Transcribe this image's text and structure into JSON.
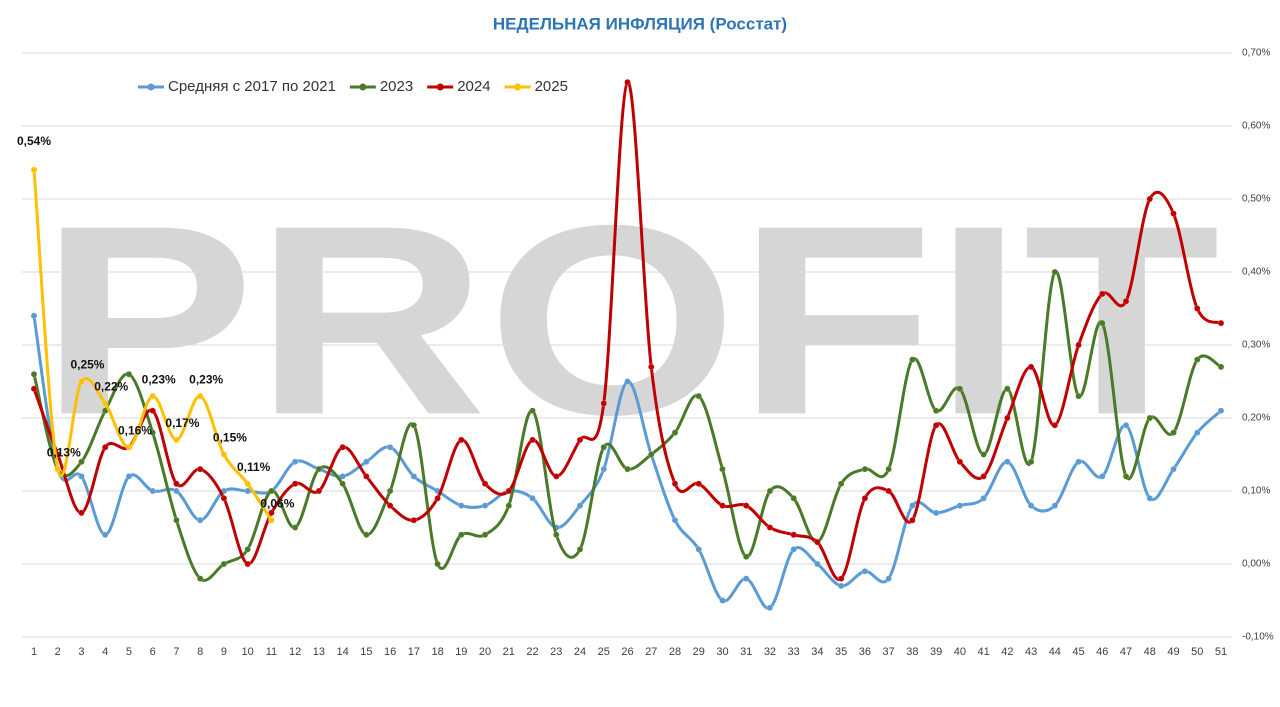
{
  "chart_data": {
    "type": "line",
    "title": "НЕДЕЛЬНАЯ ИНФЛЯЦИЯ (Росстат)",
    "watermark": "PROFIT",
    "categories": [
      1,
      2,
      3,
      4,
      5,
      6,
      7,
      8,
      9,
      10,
      11,
      12,
      13,
      14,
      15,
      16,
      17,
      18,
      19,
      20,
      21,
      22,
      23,
      24,
      25,
      26,
      27,
      28,
      29,
      30,
      31,
      32,
      33,
      34,
      35,
      36,
      37,
      38,
      39,
      40,
      41,
      42,
      43,
      44,
      45,
      46,
      47,
      48,
      49,
      50,
      51
    ],
    "ylim": [
      -0.1,
      0.7
    ],
    "yticks": [
      {
        "value": -0.1,
        "label": "-0,10%"
      },
      {
        "value": 0,
        "label": "0,00%"
      },
      {
        "value": 0.1,
        "label": "0,10%"
      },
      {
        "value": 0.2,
        "label": "0,20%"
      },
      {
        "value": 0.3,
        "label": "0,30%"
      },
      {
        "value": 0.4,
        "label": "0,40%"
      },
      {
        "value": 0.5,
        "label": "0,50%"
      },
      {
        "value": 0.6,
        "label": "0,60%"
      },
      {
        "value": 0.7,
        "label": "0,70%"
      }
    ],
    "grid": true,
    "smooth": true,
    "legend": "top-left",
    "series": [
      {
        "name": "Средняя с 2017 по 2021",
        "color": "#5b9bd5",
        "values": [
          0.34,
          0.13,
          0.12,
          0.04,
          0.12,
          0.1,
          0.1,
          0.06,
          0.1,
          0.1,
          0.1,
          0.14,
          0.13,
          0.12,
          0.14,
          0.16,
          0.12,
          0.1,
          0.08,
          0.08,
          0.1,
          0.09,
          0.05,
          0.08,
          0.13,
          0.25,
          0.15,
          0.06,
          0.02,
          -0.05,
          -0.02,
          -0.06,
          0.02,
          0.0,
          -0.03,
          -0.01,
          -0.02,
          0.08,
          0.07,
          0.08,
          0.09,
          0.14,
          0.08,
          0.08,
          0.14,
          0.12,
          0.19,
          0.09,
          0.13,
          0.18,
          0.21
        ]
      },
      {
        "name": "2023",
        "color": "#4a7a28",
        "values": [
          0.26,
          0.13,
          0.14,
          0.21,
          0.26,
          0.18,
          0.06,
          -0.02,
          0.0,
          0.02,
          0.1,
          0.05,
          0.13,
          0.11,
          0.04,
          0.1,
          0.19,
          0.0,
          0.04,
          0.04,
          0.08,
          0.21,
          0.04,
          0.02,
          0.16,
          0.13,
          0.15,
          0.18,
          0.23,
          0.13,
          0.01,
          0.1,
          0.09,
          0.03,
          0.11,
          0.13,
          0.13,
          0.28,
          0.21,
          0.24,
          0.15,
          0.24,
          0.14,
          0.4,
          0.23,
          0.33,
          0.12,
          0.2,
          0.18,
          0.28,
          0.27
        ]
      },
      {
        "name": "2024",
        "color": "#c00000",
        "values": [
          0.24,
          0.15,
          0.07,
          0.16,
          0.16,
          0.21,
          0.11,
          0.13,
          0.09,
          0.0,
          0.07,
          0.11,
          0.1,
          0.16,
          0.12,
          0.08,
          0.06,
          0.09,
          0.17,
          0.11,
          0.1,
          0.17,
          0.12,
          0.17,
          0.22,
          0.66,
          0.27,
          0.11,
          0.11,
          0.08,
          0.08,
          0.05,
          0.04,
          0.03,
          -0.02,
          0.09,
          0.1,
          0.06,
          0.19,
          0.14,
          0.12,
          0.2,
          0.27,
          0.19,
          0.3,
          0.37,
          0.36,
          0.5,
          0.48,
          0.35,
          0.33
        ]
      },
      {
        "name": "2025",
        "color": "#ffc000",
        "values": [
          0.54,
          0.13,
          0.25,
          0.22,
          0.16,
          0.23,
          0.17,
          0.23,
          0.15,
          0.11,
          0.06,
          null,
          null,
          null,
          null,
          null,
          null,
          null,
          null,
          null,
          null,
          null,
          null,
          null,
          null,
          null,
          null,
          null,
          null,
          null,
          null,
          null,
          null,
          null,
          null,
          null,
          null,
          null,
          null,
          null,
          null,
          null,
          null,
          null,
          null,
          null,
          null,
          null,
          null,
          null,
          null
        ],
        "value_labels": [
          "0,54%",
          "0,13%",
          "0,25%",
          "0,22%",
          "0,16%",
          "0,23%",
          "0,17%",
          "0,23%",
          "0,15%",
          "0,11%",
          "0,06%",
          null,
          null,
          null,
          null,
          null,
          null,
          null,
          null,
          null,
          null,
          null,
          null,
          null,
          null,
          null,
          null,
          null,
          null,
          null,
          null,
          null,
          null,
          null,
          null,
          null,
          null,
          null,
          null,
          null,
          null,
          null,
          null,
          null,
          null,
          null,
          null,
          null,
          null,
          null,
          null
        ]
      }
    ]
  }
}
